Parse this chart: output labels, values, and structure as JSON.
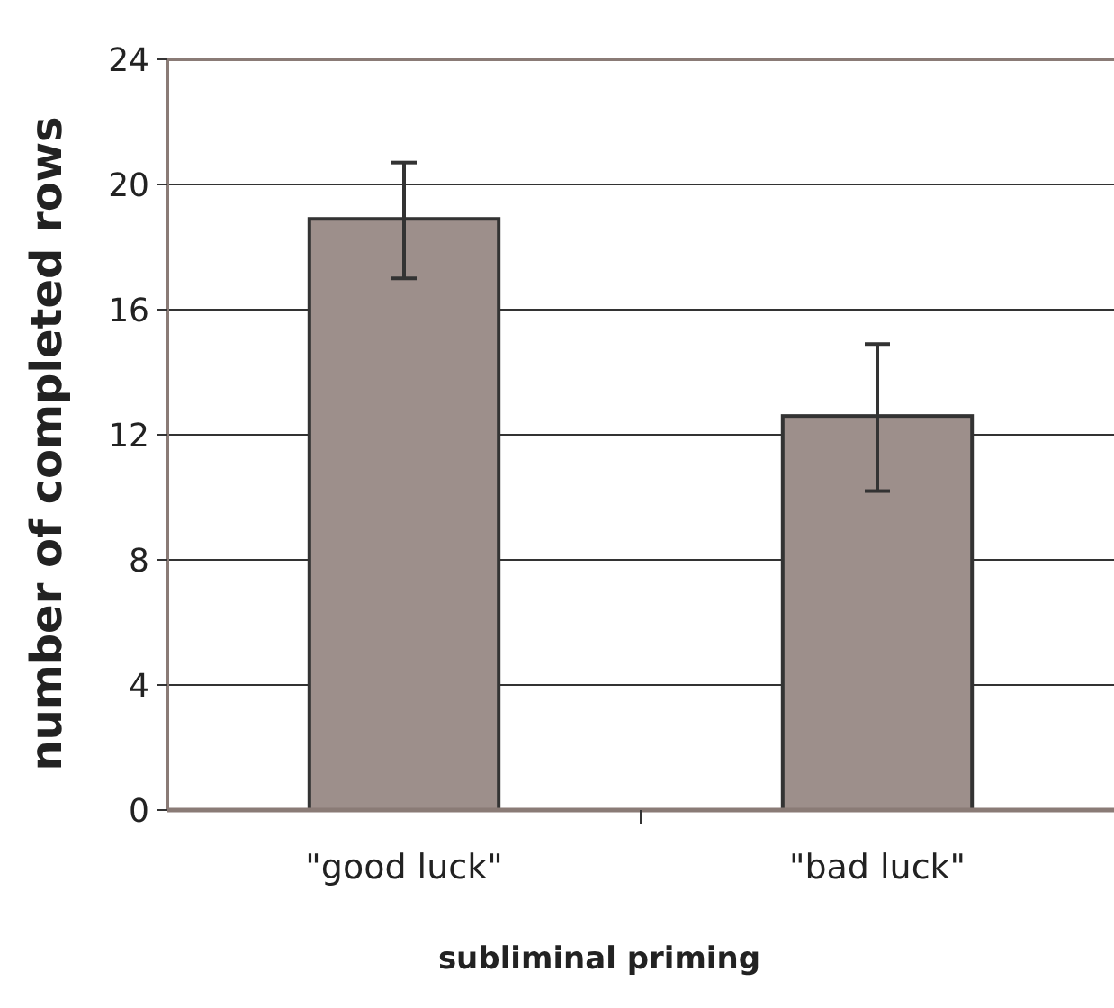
{
  "chart_data": {
    "type": "bar",
    "xlabel": "subliminal priming",
    "ylabel": "number of completed rows",
    "categories": [
      "\"good luck\"",
      "\"bad luck\""
    ],
    "values": [
      18.9,
      12.6
    ],
    "errors": [
      [
        17.0,
        20.7
      ],
      [
        10.2,
        14.9
      ]
    ],
    "color": "#9d8f8b",
    "ylim": [
      0,
      24
    ],
    "yticks": [
      0,
      4,
      8,
      12,
      16,
      20,
      24
    ],
    "grid": "y"
  }
}
